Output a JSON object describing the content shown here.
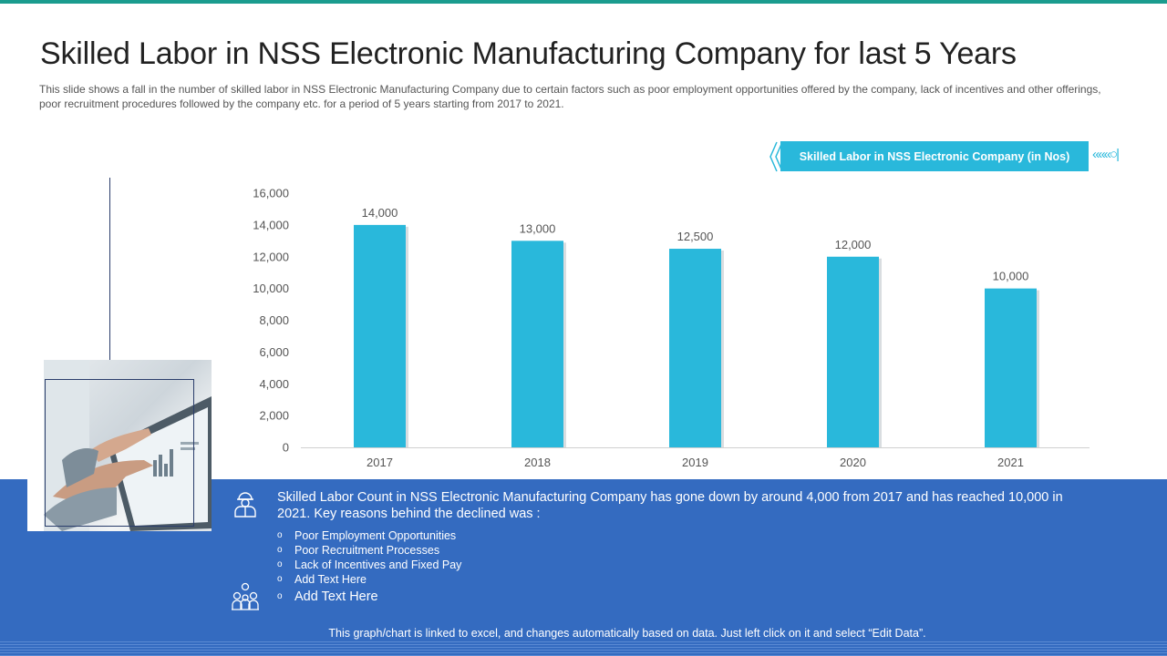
{
  "slide": {
    "title": "Skilled Labor in NSS Electronic Manufacturing Company for last 5 Years",
    "subtitle": "This slide shows a fall in the number of skilled labor in NSS Electronic Manufacturing  Company due to certain factors such as poor employment opportunities offered  by the company, lack of incentives and other offerings,  poor recruitment procedures followed  by the company etc. for  a period of 5 years starting from 2017 to 2021.",
    "accent_color": "#1a9c8e",
    "panel_color": "#346bc0"
  },
  "legend": {
    "label": "Skilled Labor in NSS Electronic Company (in Nos)",
    "arrows": "«««○|",
    "color": "#29b8db"
  },
  "chart_data": {
    "type": "bar",
    "title": "",
    "categories": [
      "2017",
      "2018",
      "2019",
      "2020",
      "2021"
    ],
    "series": [
      {
        "name": "Skilled Labor in NSS Electronic Company (in Nos)",
        "values": [
          14000,
          13000,
          12500,
          12000,
          10000
        ],
        "color": "#29b8db"
      }
    ],
    "data_labels": [
      "14,000",
      "13,000",
      "12,500",
      "12,000",
      "10,000"
    ],
    "ylim": [
      0,
      16000
    ],
    "yticks": [
      0,
      2000,
      4000,
      6000,
      8000,
      10000,
      12000,
      14000,
      16000
    ],
    "ytick_labels": [
      "0",
      "2,000",
      "4,000",
      "6,000",
      "8,000",
      "10,000",
      "12,000",
      "14,000",
      "16,000"
    ],
    "xlabel": "",
    "ylabel": "",
    "grid": false,
    "legend_position": "top-right"
  },
  "panel": {
    "summary": "Skilled Labor Count in NSS Electronic Manufacturing Company has gone down by around 4,000 from 2017 and has reached 10,000 in 2021. Key reasons behind the declined was :",
    "bullet_glyph": "o",
    "reasons": [
      "Poor Employment Opportunities",
      "Poor Recruitment Processes",
      "Lack of Incentives  and Fixed Pay",
      "Add Text Here",
      "Add Text Here"
    ],
    "icons": [
      "worker-icon",
      "team-icon"
    ],
    "footnote": "This graph/chart is linked to excel, and changes automatically based on data. Just left click on it and select “Edit Data”."
  }
}
